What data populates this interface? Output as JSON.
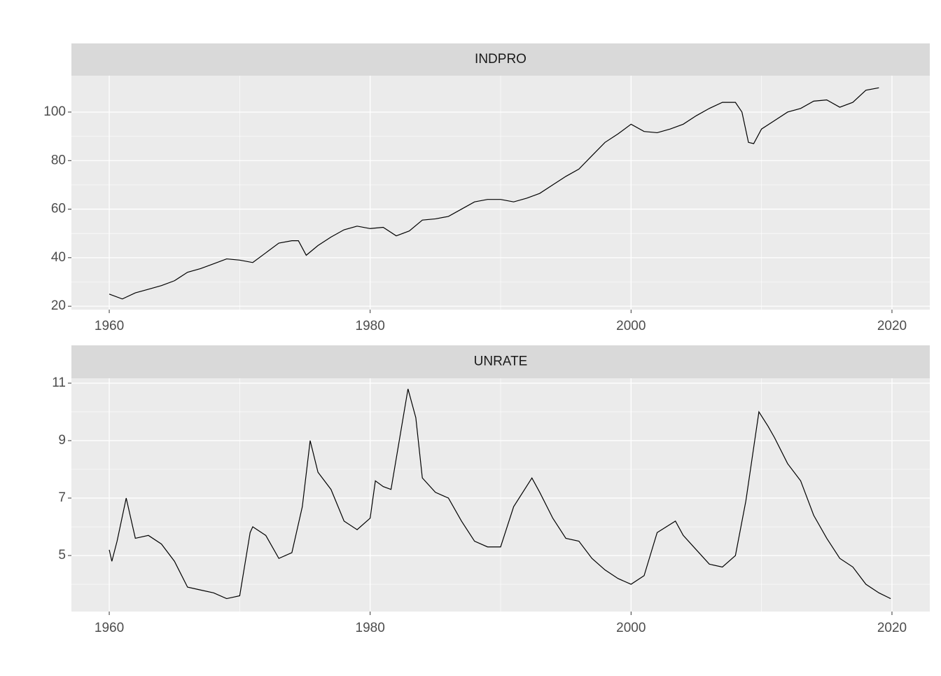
{
  "chart_data": [
    {
      "type": "line",
      "title": "INDPRO",
      "color": "#000000",
      "grid": true,
      "x": [
        1960,
        1961,
        1962,
        1963,
        1964,
        1965,
        1966,
        1967,
        1968,
        1969,
        1970,
        1971,
        1972,
        1973,
        1974,
        1974.5,
        1975.1,
        1976,
        1977,
        1978,
        1979,
        1980,
        1981,
        1982,
        1983,
        1984,
        1985,
        1986,
        1987,
        1988,
        1989,
        1990,
        1991,
        1992,
        1993,
        1994,
        1995,
        1996,
        1997,
        1998,
        1999,
        2000,
        2001,
        2002,
        2003,
        2004,
        2005,
        2006,
        2007,
        2008,
        2008.5,
        2009,
        2009.4,
        2010,
        2011,
        2012,
        2013,
        2014,
        2015,
        2016,
        2017,
        2018,
        2019
      ],
      "values": [
        25,
        23,
        25.5,
        27,
        28.5,
        30.5,
        34,
        35.5,
        37.5,
        39.5,
        39,
        38,
        42,
        46,
        47,
        47,
        41,
        45,
        48.5,
        51.5,
        53,
        52,
        52.5,
        49,
        51,
        55.5,
        56,
        57,
        60,
        63,
        64,
        64,
        63,
        64.5,
        66.5,
        70,
        73.5,
        76.5,
        82,
        87.5,
        91,
        95,
        92,
        91.5,
        93,
        95,
        98.5,
        101.5,
        104,
        104,
        100,
        87.5,
        87,
        93,
        96.5,
        100,
        101.5,
        104.5,
        105,
        102,
        104,
        109,
        110
      ],
      "xlim": [
        1957.1,
        2022.9
      ],
      "ylim": [
        18.6,
        115
      ],
      "xticks": [
        1960,
        1980,
        2000,
        2020
      ],
      "yticks": [
        20,
        40,
        60,
        80,
        100
      ]
    },
    {
      "type": "line",
      "title": "UNRATE",
      "color": "#000000",
      "grid": true,
      "x": [
        1960,
        1960.2,
        1960.6,
        1961.3,
        1961.8,
        1962,
        1963,
        1964,
        1965,
        1966,
        1967,
        1968,
        1969,
        1970,
        1970.8,
        1971,
        1972,
        1973,
        1974,
        1974.8,
        1975.4,
        1976,
        1977,
        1978,
        1979,
        1980,
        1980.4,
        1981,
        1981.6,
        1982.9,
        1983.5,
        1984,
        1985,
        1986,
        1987,
        1988,
        1989,
        1990,
        1991,
        1992.4,
        1993,
        1994,
        1995,
        1996,
        1997,
        1998,
        1999,
        2000,
        2001,
        2002,
        2003.4,
        2004,
        2005,
        2006,
        2007,
        2008,
        2008.8,
        2009.8,
        2010.5,
        2011,
        2012,
        2013,
        2014,
        2015,
        2016,
        2017,
        2018,
        2019,
        2019.9
      ],
      "values": [
        5.2,
        4.8,
        5.5,
        7.0,
        6.0,
        5.6,
        5.7,
        5.4,
        4.8,
        3.9,
        3.8,
        3.7,
        3.5,
        3.6,
        5.8,
        6.0,
        5.7,
        4.9,
        5.1,
        6.7,
        9.0,
        7.9,
        7.3,
        6.2,
        5.9,
        6.3,
        7.6,
        7.4,
        7.3,
        10.8,
        9.8,
        7.7,
        7.2,
        7.0,
        6.2,
        5.5,
        5.3,
        5.3,
        6.7,
        7.7,
        7.2,
        6.3,
        5.6,
        5.5,
        4.9,
        4.5,
        4.2,
        4.0,
        4.3,
        5.8,
        6.2,
        5.7,
        5.2,
        4.7,
        4.6,
        5.0,
        6.9,
        10.0,
        9.5,
        9.1,
        8.2,
        7.6,
        6.4,
        5.6,
        4.9,
        4.6,
        4.0,
        3.7,
        3.5
      ],
      "xlim": [
        1957.1,
        2022.9
      ],
      "ylim": [
        3.05,
        11.17
      ],
      "xticks": [
        1960,
        1980,
        2000,
        2020
      ],
      "yticks": [
        5,
        7,
        9,
        11
      ]
    }
  ]
}
